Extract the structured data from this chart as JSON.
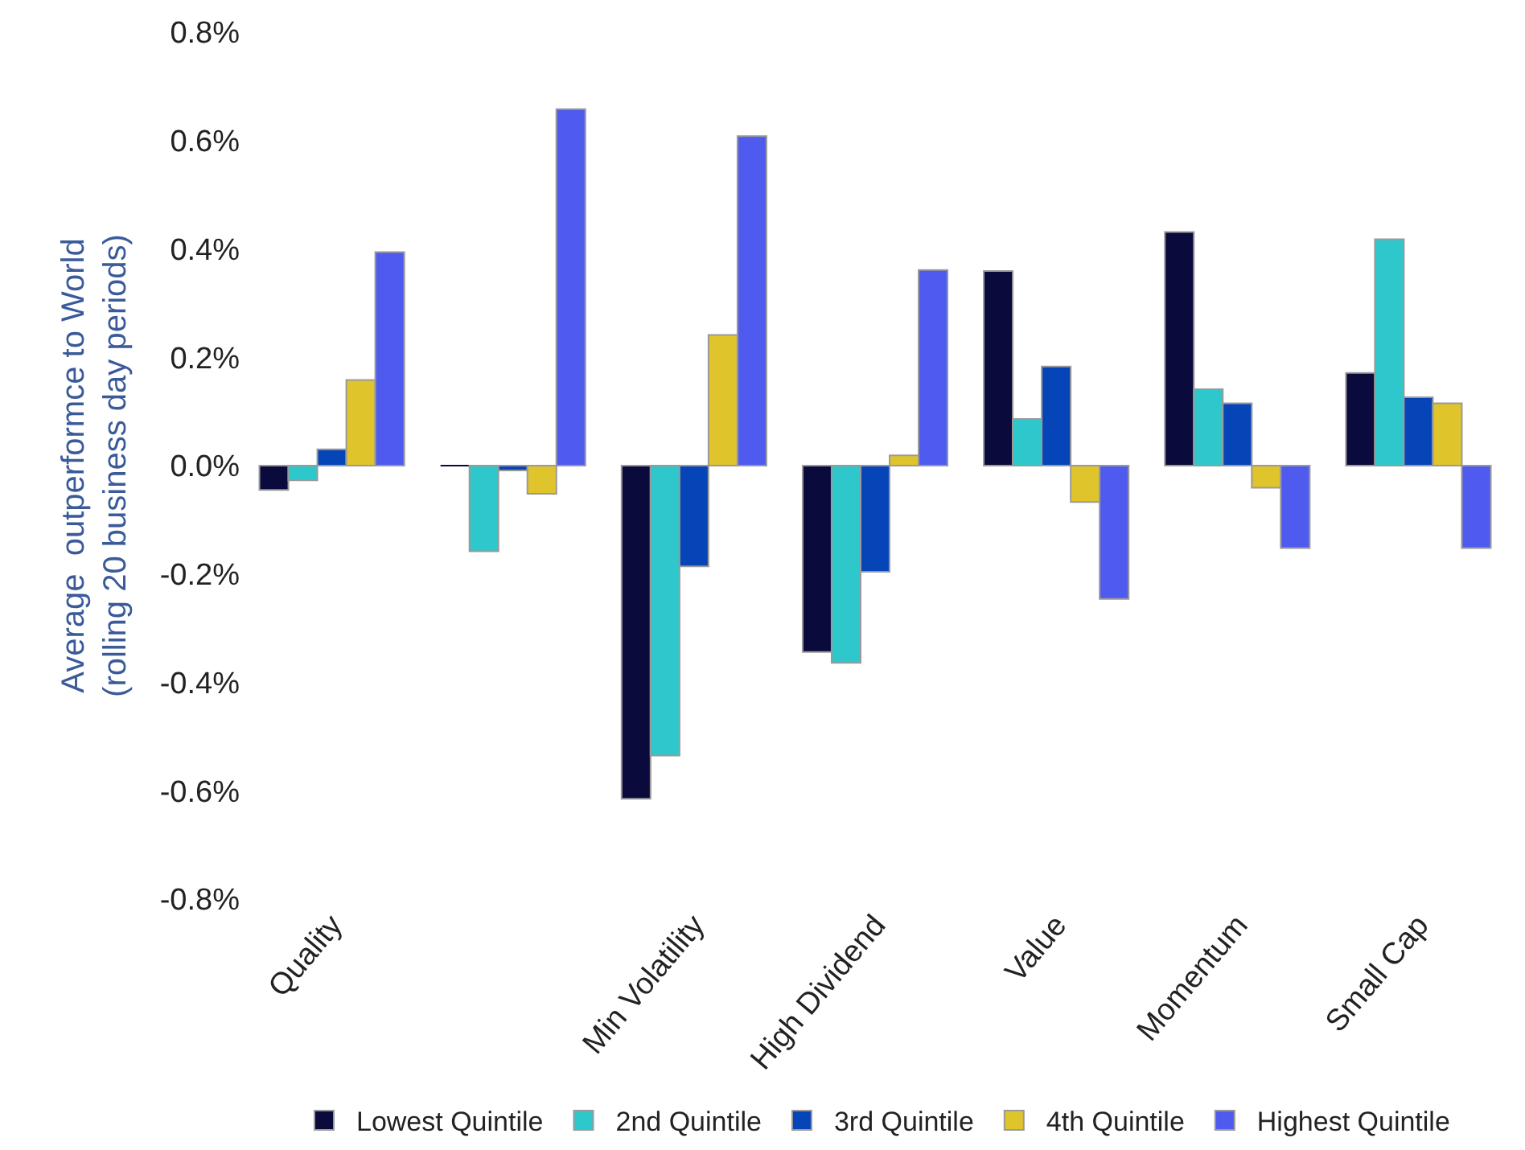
{
  "chart_data": {
    "type": "bar",
    "ylabel": "Average  outperformce to World\n(rolling 20 business day periods)",
    "categories": [
      "Quality",
      null,
      "Min Volatility",
      "High Dividend",
      "Value",
      "Momentum",
      "Small Cap"
    ],
    "series": [
      {
        "name": "Lowest Quintile",
        "color": "#0a0a3c",
        "values": [
          -0.045,
          0.0,
          -0.615,
          -0.344,
          0.359,
          0.431,
          0.171
        ]
      },
      {
        "name": "2nd Quintile",
        "color": "#2ec8cc",
        "values": [
          -0.027,
          -0.158,
          -0.535,
          -0.364,
          0.086,
          0.141,
          0.418
        ]
      },
      {
        "name": "3rd Quintile",
        "color": "#0645b8",
        "values": [
          0.03,
          -0.009,
          -0.186,
          -0.196,
          0.183,
          0.115,
          0.126
        ]
      },
      {
        "name": "4th Quintile",
        "color": "#e0c42c",
        "values": [
          0.158,
          -0.052,
          0.241,
          0.019,
          -0.067,
          -0.041,
          0.115
        ]
      },
      {
        "name": "Highest Quintile",
        "color": "#4f5bef",
        "values": [
          0.394,
          0.658,
          0.608,
          0.361,
          -0.246,
          -0.152,
          -0.152
        ]
      }
    ],
    "ylim": [
      -0.8,
      0.8
    ],
    "yticks": [
      {
        "value": -0.8,
        "label": "-0.8%"
      },
      {
        "value": -0.6,
        "label": "-0.6%"
      },
      {
        "value": -0.4,
        "label": "-0.4%"
      },
      {
        "value": -0.2,
        "label": "-0.2%"
      },
      {
        "value": 0.0,
        "label": "0.0%"
      },
      {
        "value": 0.2,
        "label": "0.2%"
      },
      {
        "value": 0.4,
        "label": "0.4%"
      },
      {
        "value": 0.6,
        "label": "0.6%"
      },
      {
        "value": 0.8,
        "label": "0.8%"
      }
    ],
    "legend": "bottom"
  }
}
